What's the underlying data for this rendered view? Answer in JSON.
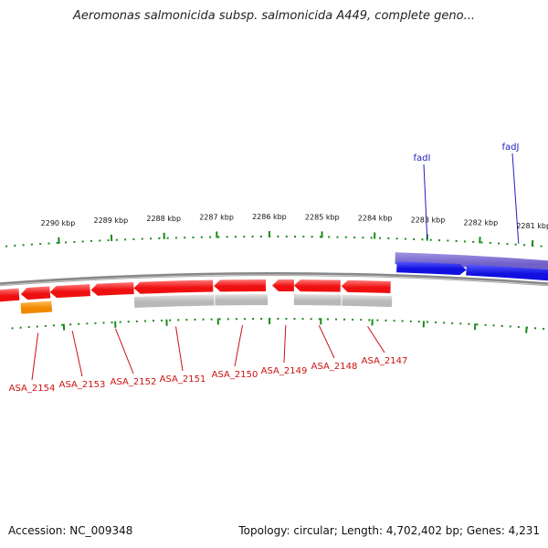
{
  "title": "Aeromonas salmonicida subsp. salmonicida A449, complete geno...",
  "footer": {
    "accession": "Accession: NC_009348",
    "summary": "Topology: circular; Length: 4,702,402 bp; Genes: 4,231"
  },
  "ticks": [
    "2290 kbp",
    "2289 kbp",
    "2288 kbp",
    "2287 kbp",
    "2286 kbp",
    "2285 kbp",
    "2284 kbp",
    "2283 kbp",
    "2282 kbp",
    "2281 kbp"
  ],
  "genes": [
    {
      "name": "fadI",
      "strand": "+"
    },
    {
      "name": "fadJ",
      "strand": "+"
    },
    {
      "name": "ASA_2154",
      "strand": "-"
    },
    {
      "name": "ASA_2153",
      "strand": "-"
    },
    {
      "name": "ASA_2152",
      "strand": "-"
    },
    {
      "name": "ASA_2151",
      "strand": "-"
    },
    {
      "name": "ASA_2150",
      "strand": "-"
    },
    {
      "name": "ASA_2149",
      "strand": "-"
    },
    {
      "name": "ASA_2148",
      "strand": "-"
    },
    {
      "name": "ASA_2147",
      "strand": "-"
    }
  ],
  "colors": {
    "forward_cds": "#1010e0",
    "forward_feature": "#7060c8",
    "reverse_cds": "#ee1010",
    "reverse_feature_grey": "#b8b8b8",
    "reverse_feature_orange": "#f08800",
    "tick": "#1a8a1a",
    "backbone": "#888888",
    "forward_label": "#2020c0",
    "reverse_label": "#cc1010"
  }
}
